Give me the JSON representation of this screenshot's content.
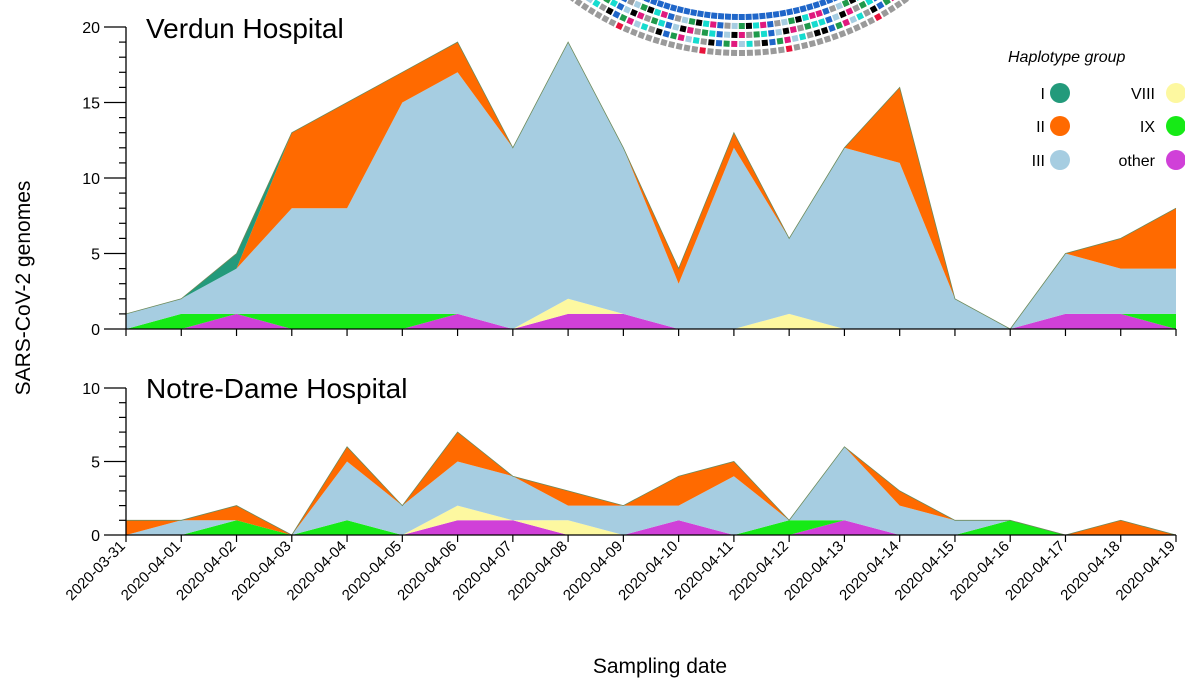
{
  "chart_data": {
    "type": "area",
    "stacked": true,
    "xlabel": "Sampling date",
    "ylabel": "SARS-CoV-2 genomes",
    "dates": [
      "2020-03-31",
      "2020-04-01",
      "2020-04-02",
      "2020-04-03",
      "2020-04-04",
      "2020-04-05",
      "2020-04-06",
      "2020-04-07",
      "2020-04-08",
      "2020-04-09",
      "2020-04-10",
      "2020-04-11",
      "2020-04-12",
      "2020-04-13",
      "2020-04-14",
      "2020-04-15",
      "2020-04-16",
      "2020-04-17",
      "2020-04-18",
      "2020-04-19"
    ],
    "legend": {
      "title": "Haplotype group",
      "position": "top-right",
      "groups": [
        {
          "key": "I",
          "label": "I",
          "color": "#239a7b"
        },
        {
          "key": "II",
          "label": "II",
          "color": "#ff6a00"
        },
        {
          "key": "III",
          "label": "III",
          "color": "#a6cde1"
        },
        {
          "key": "VIII",
          "label": "VIII",
          "color": "#fdf8a0"
        },
        {
          "key": "IX",
          "label": "IX",
          "color": "#16ea16"
        },
        {
          "key": "other",
          "label": "other",
          "color": "#d040d8"
        }
      ]
    },
    "panels": [
      {
        "title": "Verdun Hospital",
        "ylim": [
          0,
          20
        ],
        "yticks": [
          0,
          5,
          10,
          15,
          20
        ],
        "series": {
          "other": [
            0,
            0,
            1,
            0,
            0,
            0,
            1,
            0,
            1,
            1,
            0,
            0,
            0,
            0,
            0,
            0,
            0,
            1,
            1,
            0
          ],
          "IX": [
            0,
            1,
            0,
            1,
            1,
            1,
            0,
            0,
            0,
            0,
            0,
            0,
            0,
            0,
            0,
            0,
            0,
            0,
            0,
            1
          ],
          "VIII": [
            0,
            0,
            0,
            0,
            0,
            0,
            0,
            0,
            1,
            0,
            0,
            0,
            1,
            0,
            0,
            0,
            0,
            0,
            0,
            0
          ],
          "III": [
            1,
            1,
            3,
            7,
            7,
            14,
            16,
            12,
            17,
            11,
            3,
            12,
            5,
            12,
            11,
            2,
            0,
            4,
            3,
            3
          ],
          "II": [
            0,
            0,
            0,
            5,
            7,
            2,
            2,
            0,
            0,
            0,
            1,
            1,
            0,
            0,
            5,
            0,
            0,
            0,
            2,
            4
          ],
          "I": [
            0,
            0,
            1,
            0,
            0,
            0,
            0,
            0,
            0,
            0,
            0,
            0,
            0,
            0,
            0,
            0,
            0,
            0,
            0,
            0
          ]
        }
      },
      {
        "title": "Notre-Dame Hospital",
        "ylim": [
          0,
          10
        ],
        "yticks": [
          0,
          5,
          10
        ],
        "series": {
          "other": [
            0,
            0,
            0,
            0,
            0,
            0,
            1,
            1,
            0,
            0,
            1,
            0,
            0,
            1,
            0,
            0,
            0,
            0,
            0,
            0
          ],
          "IX": [
            0,
            0,
            1,
            0,
            1,
            0,
            0,
            0,
            0,
            0,
            0,
            0,
            1,
            0,
            0,
            0,
            1,
            0,
            0,
            0
          ],
          "VIII": [
            0,
            0,
            0,
            0,
            0,
            0,
            1,
            0,
            1,
            0,
            0,
            0,
            0,
            0,
            0,
            0,
            0,
            0,
            0,
            0
          ],
          "III": [
            0,
            1,
            0,
            0,
            4,
            2,
            3,
            3,
            1,
            2,
            1,
            4,
            0,
            5,
            2,
            1,
            0,
            0,
            0,
            0
          ],
          "II": [
            1,
            0,
            1,
            0,
            1,
            0,
            2,
            0,
            1,
            0,
            2,
            1,
            0,
            0,
            1,
            0,
            0,
            0,
            1,
            0
          ],
          "I": [
            0,
            0,
            0,
            0,
            0,
            0,
            0,
            0,
            0,
            0,
            0,
            0,
            0,
            0,
            0,
            0,
            0,
            0,
            0,
            0
          ]
        }
      }
    ]
  }
}
